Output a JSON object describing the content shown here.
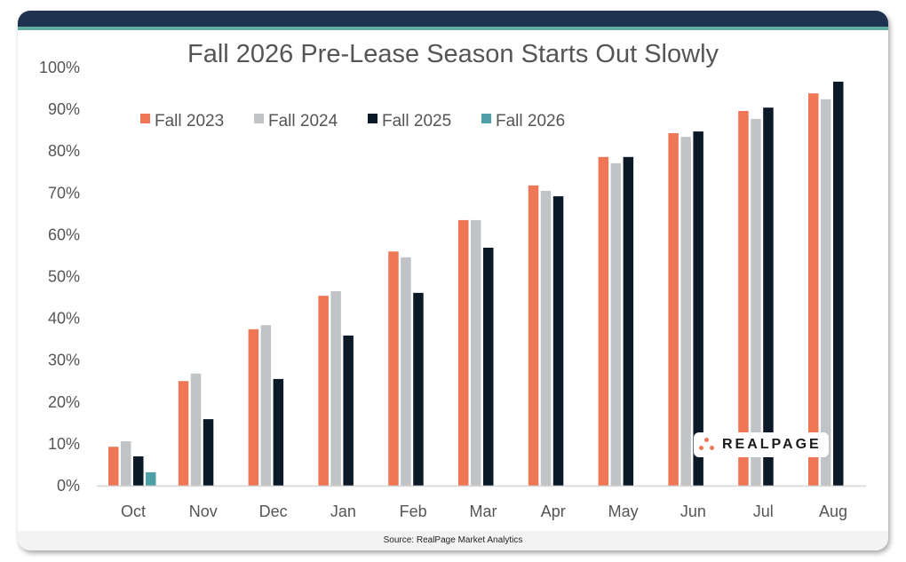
{
  "chart_data": {
    "type": "bar",
    "title": "Fall 2026 Pre-Lease Season Starts Out Slowly",
    "categories": [
      "Oct",
      "Nov",
      "Dec",
      "Jan",
      "Feb",
      "Mar",
      "Apr",
      "May",
      "Jun",
      "Jul",
      "Aug"
    ],
    "series": [
      {
        "name": "Fall 2023",
        "color": "#ef7756",
        "values": [
          9.3,
          25.0,
          37.4,
          45.4,
          56.0,
          63.5,
          71.8,
          78.6,
          84.3,
          89.6,
          93.8
        ]
      },
      {
        "name": "Fall 2024",
        "color": "#c1c4c7",
        "values": [
          10.6,
          26.8,
          38.4,
          46.5,
          54.6,
          63.5,
          70.5,
          77.1,
          83.4,
          87.7,
          92.4
        ]
      },
      {
        "name": "Fall 2025",
        "color": "#0c1a28",
        "values": [
          7.0,
          15.9,
          25.5,
          35.9,
          46.1,
          56.9,
          69.2,
          78.6,
          84.7,
          90.4,
          96.6
        ]
      },
      {
        "name": "Fall 2026",
        "color": "#4e9fa6",
        "values": [
          3.2,
          null,
          null,
          null,
          null,
          null,
          null,
          null,
          null,
          null,
          null
        ]
      }
    ],
    "ylim": [
      0,
      100
    ],
    "yticks": [
      "0%",
      "10%",
      "20%",
      "30%",
      "40%",
      "50%",
      "60%",
      "70%",
      "80%",
      "90%",
      "100%"
    ],
    "legend": "top-left",
    "grid": false
  },
  "logo": "REALPAGE",
  "source": "Source: RealPage Market Analytics"
}
